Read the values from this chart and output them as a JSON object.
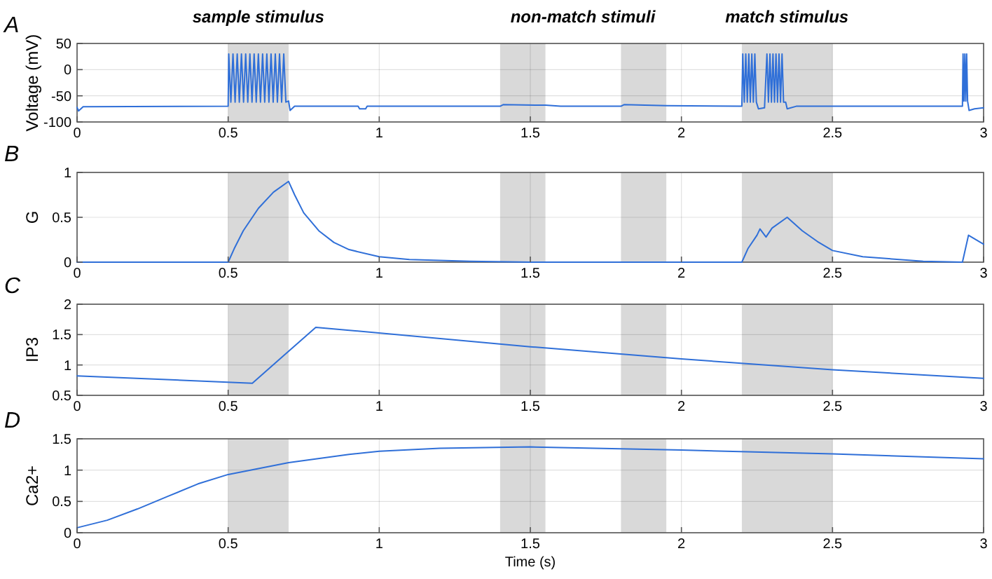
{
  "chart_data": [
    {
      "type": "line",
      "title": "A",
      "ylabel": "Voltage (mV)",
      "xlim": [
        0,
        3
      ],
      "xticks": [
        0,
        0.5,
        1,
        1.5,
        2,
        2.5,
        3
      ],
      "ylim": [
        -100,
        50
      ],
      "yticks": [
        -100,
        -50,
        0,
        50
      ],
      "grid": true,
      "annotations": [
        "sample stimulus",
        "non-match stimuli",
        "match stimulus"
      ],
      "bands": [
        {
          "axis": "x",
          "from": 0.5,
          "to": 0.7,
          "color": "#d9d9d9"
        },
        {
          "axis": "x",
          "from": 1.4,
          "to": 1.55,
          "color": "#d9d9d9"
        },
        {
          "axis": "x",
          "from": 1.8,
          "to": 1.95,
          "color": "#d9d9d9"
        },
        {
          "axis": "x",
          "from": 2.2,
          "to": 2.5,
          "color": "#d9d9d9"
        }
      ],
      "series": [
        {
          "color": "#2f6fd8",
          "x": [
            0,
            0.005,
            0.02,
            0.5,
            0.502,
            0.509,
            0.516,
            0.523,
            0.53,
            0.537,
            0.544,
            0.551,
            0.558,
            0.565,
            0.572,
            0.579,
            0.586,
            0.593,
            0.6,
            0.607,
            0.614,
            0.621,
            0.628,
            0.635,
            0.642,
            0.649,
            0.656,
            0.663,
            0.67,
            0.677,
            0.684,
            0.691,
            0.7,
            0.705,
            0.72,
            0.93,
            0.935,
            0.955,
            0.96,
            1.4,
            1.41,
            1.55,
            1.6,
            1.8,
            1.81,
            1.95,
            2.2,
            2.203,
            2.208,
            2.213,
            2.218,
            2.223,
            2.228,
            2.233,
            2.238,
            2.243,
            2.248,
            2.255,
            2.275,
            2.283,
            2.288,
            2.293,
            2.298,
            2.303,
            2.308,
            2.313,
            2.318,
            2.323,
            2.328,
            2.333,
            2.338,
            2.345,
            2.35,
            2.38,
            2.93,
            2.932,
            2.935,
            2.938,
            2.941,
            2.944,
            2.947,
            2.952,
            2.97,
            3
          ],
          "values": [
            -72,
            -79,
            -71,
            -70,
            30,
            -62,
            30,
            -62,
            30,
            -62,
            30,
            -62,
            30,
            -62,
            30,
            -62,
            30,
            -62,
            30,
            -62,
            30,
            -62,
            30,
            -62,
            30,
            -62,
            30,
            -62,
            30,
            -62,
            30,
            -62,
            -60,
            -78,
            -70,
            -70,
            -75,
            -75,
            -70,
            -70,
            -67,
            -68,
            -70,
            -70,
            -67,
            -69,
            -70,
            30,
            -62,
            30,
            -62,
            30,
            -62,
            30,
            -62,
            30,
            -62,
            -75,
            -73,
            30,
            -62,
            30,
            -62,
            30,
            -62,
            30,
            -62,
            30,
            -62,
            30,
            -62,
            -62,
            -75,
            -70,
            -70,
            30,
            -60,
            30,
            -60,
            30,
            -60,
            -78,
            -75,
            -73
          ]
        }
      ]
    },
    {
      "type": "line",
      "title": "B",
      "ylabel": "G",
      "xlim": [
        0,
        3
      ],
      "xticks": [
        0,
        0.5,
        1,
        1.5,
        2,
        2.5,
        3
      ],
      "ylim": [
        0,
        1
      ],
      "yticks": [
        0,
        0.5,
        1
      ],
      "grid": true,
      "bands": [
        {
          "axis": "x",
          "from": 0.5,
          "to": 0.7,
          "color": "#d9d9d9"
        },
        {
          "axis": "x",
          "from": 1.4,
          "to": 1.55,
          "color": "#d9d9d9"
        },
        {
          "axis": "x",
          "from": 1.8,
          "to": 1.95,
          "color": "#d9d9d9"
        },
        {
          "axis": "x",
          "from": 2.2,
          "to": 2.5,
          "color": "#d9d9d9"
        }
      ],
      "series": [
        {
          "color": "#2f6fd8",
          "x": [
            0,
            0.5,
            0.52,
            0.55,
            0.6,
            0.65,
            0.7,
            0.72,
            0.75,
            0.8,
            0.85,
            0.9,
            1,
            1.1,
            1.3,
            1.5,
            2.2,
            2.22,
            2.25,
            2.26,
            2.28,
            2.3,
            2.35,
            2.4,
            2.45,
            2.5,
            2.6,
            2.8,
            2.93,
            2.95,
            3
          ],
          "values": [
            0,
            0,
            0.15,
            0.35,
            0.6,
            0.78,
            0.9,
            0.75,
            0.55,
            0.35,
            0.22,
            0.14,
            0.06,
            0.03,
            0.01,
            0,
            0,
            0.15,
            0.3,
            0.37,
            0.28,
            0.38,
            0.5,
            0.35,
            0.23,
            0.13,
            0.06,
            0.01,
            0,
            0.3,
            0.2
          ]
        }
      ]
    },
    {
      "type": "line",
      "title": "C",
      "ylabel": "IP3",
      "xlim": [
        0,
        3
      ],
      "xticks": [
        0,
        0.5,
        1,
        1.5,
        2,
        2.5,
        3
      ],
      "ylim": [
        0.5,
        2
      ],
      "yticks": [
        0.5,
        1,
        1.5,
        2
      ],
      "grid": true,
      "bands": [
        {
          "axis": "x",
          "from": 0.5,
          "to": 0.7,
          "color": "#d9d9d9"
        },
        {
          "axis": "x",
          "from": 1.4,
          "to": 1.55,
          "color": "#d9d9d9"
        },
        {
          "axis": "x",
          "from": 1.8,
          "to": 1.95,
          "color": "#d9d9d9"
        },
        {
          "axis": "x",
          "from": 2.2,
          "to": 2.5,
          "color": "#d9d9d9"
        }
      ],
      "series": [
        {
          "color": "#2f6fd8",
          "x": [
            0,
            0.58,
            0.79,
            1.5,
            2,
            2.5,
            3
          ],
          "values": [
            0.82,
            0.7,
            1.62,
            1.3,
            1.1,
            0.92,
            0.78
          ]
        }
      ]
    },
    {
      "type": "line",
      "title": "D",
      "ylabel": "Ca2+",
      "xlabel": "Time (s)",
      "xlim": [
        0,
        3
      ],
      "xticks": [
        0,
        0.5,
        1,
        1.5,
        2,
        2.5,
        3
      ],
      "ylim": [
        0,
        1.5
      ],
      "yticks": [
        0,
        0.5,
        1,
        1.5
      ],
      "grid": true,
      "bands": [
        {
          "axis": "x",
          "from": 0.5,
          "to": 0.7,
          "color": "#d9d9d9"
        },
        {
          "axis": "x",
          "from": 1.4,
          "to": 1.55,
          "color": "#d9d9d9"
        },
        {
          "axis": "x",
          "from": 1.8,
          "to": 1.95,
          "color": "#d9d9d9"
        },
        {
          "axis": "x",
          "from": 2.2,
          "to": 2.5,
          "color": "#d9d9d9"
        }
      ],
      "series": [
        {
          "color": "#2f6fd8",
          "x": [
            0,
            0.1,
            0.2,
            0.3,
            0.4,
            0.5,
            0.7,
            0.9,
            1,
            1.2,
            1.5,
            2,
            2.5,
            3
          ],
          "values": [
            0.08,
            0.2,
            0.38,
            0.58,
            0.78,
            0.93,
            1.12,
            1.25,
            1.3,
            1.35,
            1.37,
            1.32,
            1.26,
            1.18
          ]
        }
      ]
    }
  ]
}
